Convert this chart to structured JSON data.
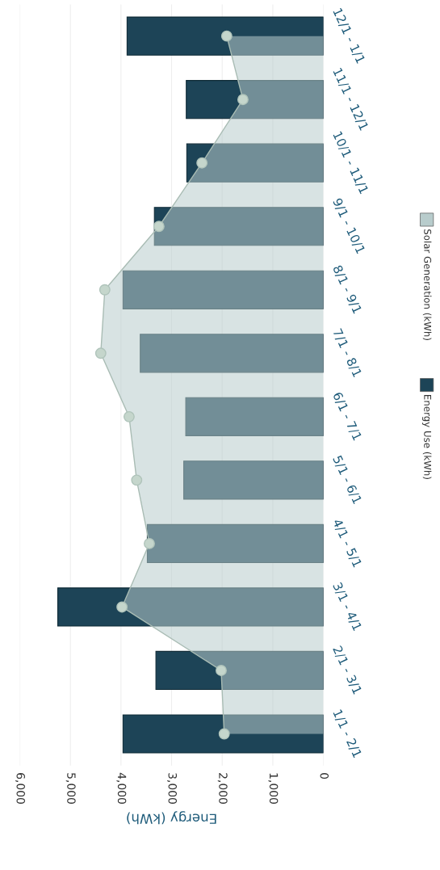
{
  "chart_data": {
    "type": "bar",
    "orientation": "horizontal",
    "xlabel": "Energy (kWh)",
    "categories": [
      "12/1 - 1/1",
      "11/1 - 12/1",
      "10/1 - 11/1",
      "9/1 - 10/1",
      "8/1 - 9/1",
      "7/1 - 8/1",
      "6/1 - 7/1",
      "5/1 - 6/1",
      "4/1 - 5/1",
      "3/1 - 4/1",
      "2/1 - 3/1",
      "1/1 - 2/1"
    ],
    "series": [
      {
        "name": "Energy Use (kWh)",
        "color": "#1d4457",
        "values": [
          3880,
          2710,
          2700,
          3340,
          3960,
          3620,
          2720,
          2760,
          3480,
          5250,
          3310,
          3960
        ]
      },
      {
        "name": "Solar Generation (kWh)",
        "type": "area",
        "color": "#b8cccc",
        "marker": "circle",
        "values": [
          1910,
          1590,
          2400,
          3250,
          4320,
          4400,
          3840,
          3690,
          3440,
          3980,
          2020,
          1960
        ]
      }
    ],
    "xlim": [
      6000,
      0
    ],
    "xticks": [
      {
        "value": 6000,
        "label": "6,000"
      },
      {
        "value": 5000,
        "label": "5,000"
      },
      {
        "value": 4000,
        "label": "4,000"
      },
      {
        "value": 3000,
        "label": "3,000"
      },
      {
        "value": 2000,
        "label": "2,000"
      },
      {
        "value": 1000,
        "label": "1,000"
      },
      0
    ],
    "grid": "x",
    "legend": "right"
  }
}
